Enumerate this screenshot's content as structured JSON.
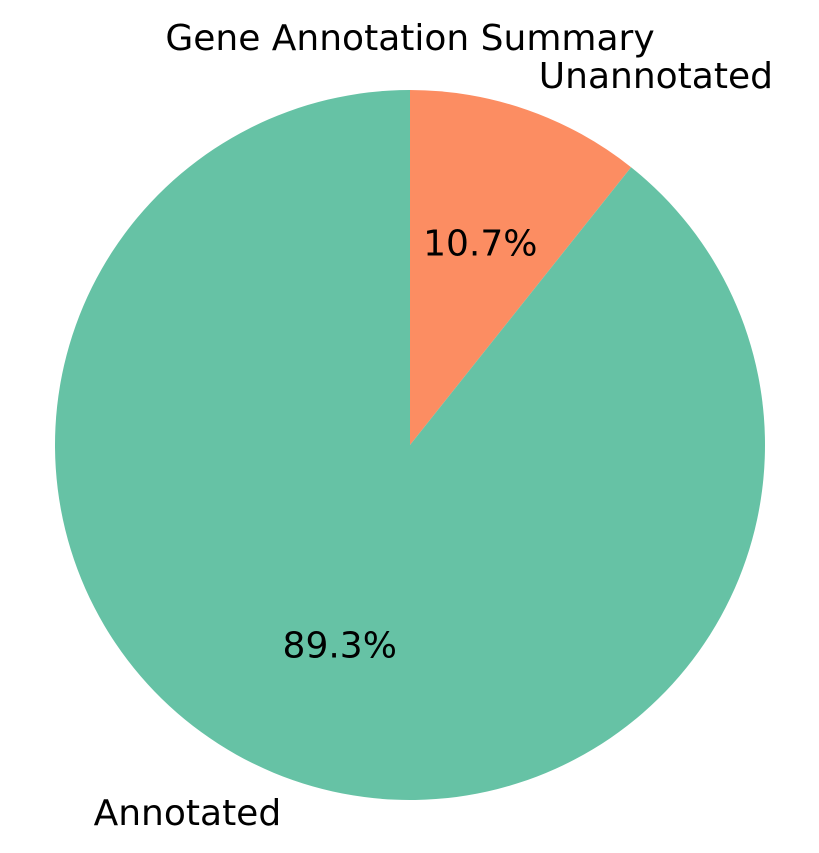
{
  "chart_data": {
    "type": "pie",
    "title": "Gene Annotation Summary",
    "slices": [
      {
        "label": "Unannotated",
        "value": 10.7,
        "pct_label": "10.7%",
        "color": "#fc8d62"
      },
      {
        "label": "Annotated",
        "value": 89.3,
        "pct_label": "89.3%",
        "color": "#66c2a5"
      }
    ],
    "start_angle_deg": 90,
    "direction": "clockwise"
  }
}
